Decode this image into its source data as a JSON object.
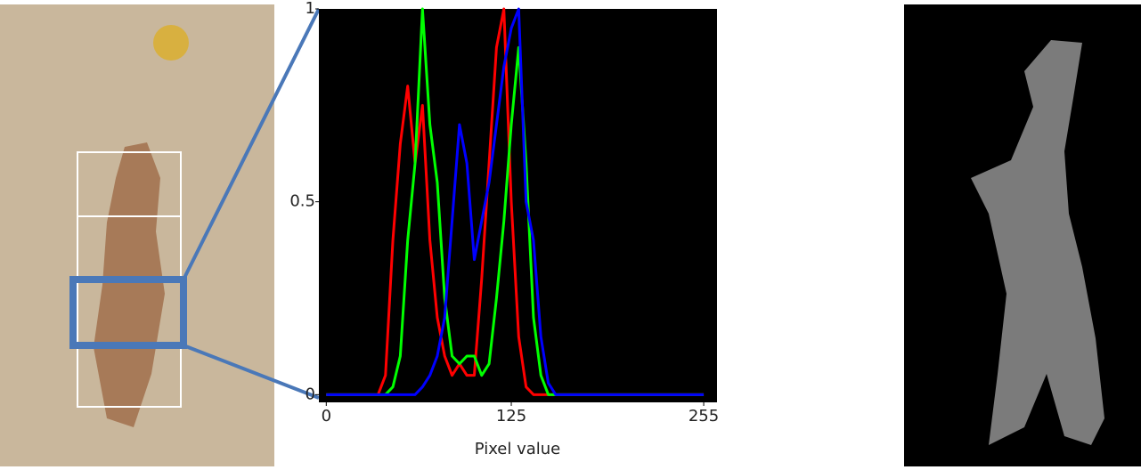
{
  "chart_data": {
    "type": "line",
    "xlabel": "Pixel value",
    "x": [
      0,
      5,
      10,
      15,
      20,
      25,
      30,
      35,
      40,
      45,
      50,
      55,
      60,
      65,
      70,
      75,
      80,
      85,
      90,
      95,
      100,
      105,
      110,
      115,
      120,
      125,
      130,
      135,
      140,
      145,
      150,
      155,
      160,
      165,
      170,
      175,
      180,
      185,
      190,
      195,
      200,
      205,
      210,
      215,
      220,
      225,
      230,
      235,
      240,
      245,
      250,
      255
    ],
    "series": [
      {
        "color": "#ff0000",
        "values": [
          0,
          0,
          0,
          0,
          0,
          0,
          0,
          0,
          0.05,
          0.4,
          0.65,
          0.8,
          0.6,
          0.75,
          0.4,
          0.2,
          0.1,
          0.05,
          0.08,
          0.05,
          0.05,
          0.3,
          0.6,
          0.9,
          1.0,
          0.5,
          0.15,
          0.02,
          0,
          0,
          0,
          0,
          0,
          0,
          0,
          0,
          0,
          0,
          0,
          0,
          0,
          0,
          0,
          0,
          0,
          0,
          0,
          0,
          0,
          0,
          0,
          0
        ]
      },
      {
        "color": "#00ff00",
        "values": [
          0,
          0,
          0,
          0,
          0,
          0,
          0,
          0,
          0,
          0.02,
          0.1,
          0.4,
          0.6,
          1.0,
          0.7,
          0.55,
          0.25,
          0.1,
          0.08,
          0.1,
          0.1,
          0.05,
          0.08,
          0.25,
          0.45,
          0.7,
          0.9,
          0.6,
          0.2,
          0.05,
          0,
          0,
          0,
          0,
          0,
          0,
          0,
          0,
          0,
          0,
          0,
          0,
          0,
          0,
          0,
          0,
          0,
          0,
          0,
          0,
          0,
          0
        ]
      },
      {
        "color": "#0000ff",
        "values": [
          0,
          0,
          0,
          0,
          0,
          0,
          0,
          0,
          0,
          0,
          0,
          0,
          0,
          0.02,
          0.05,
          0.1,
          0.2,
          0.45,
          0.7,
          0.6,
          0.35,
          0.45,
          0.55,
          0.7,
          0.85,
          0.95,
          1.0,
          0.5,
          0.4,
          0.15,
          0.03,
          0,
          0,
          0,
          0,
          0,
          0,
          0,
          0,
          0,
          0,
          0,
          0,
          0,
          0,
          0,
          0,
          0,
          0,
          0,
          0,
          0
        ]
      }
    ],
    "xlim": [
      -5,
      264
    ],
    "ylim": [
      -0.02,
      1
    ],
    "xticks": [
      0,
      125,
      255
    ],
    "yticks": [
      0,
      0.5,
      1
    ],
    "background": "#000000"
  }
}
